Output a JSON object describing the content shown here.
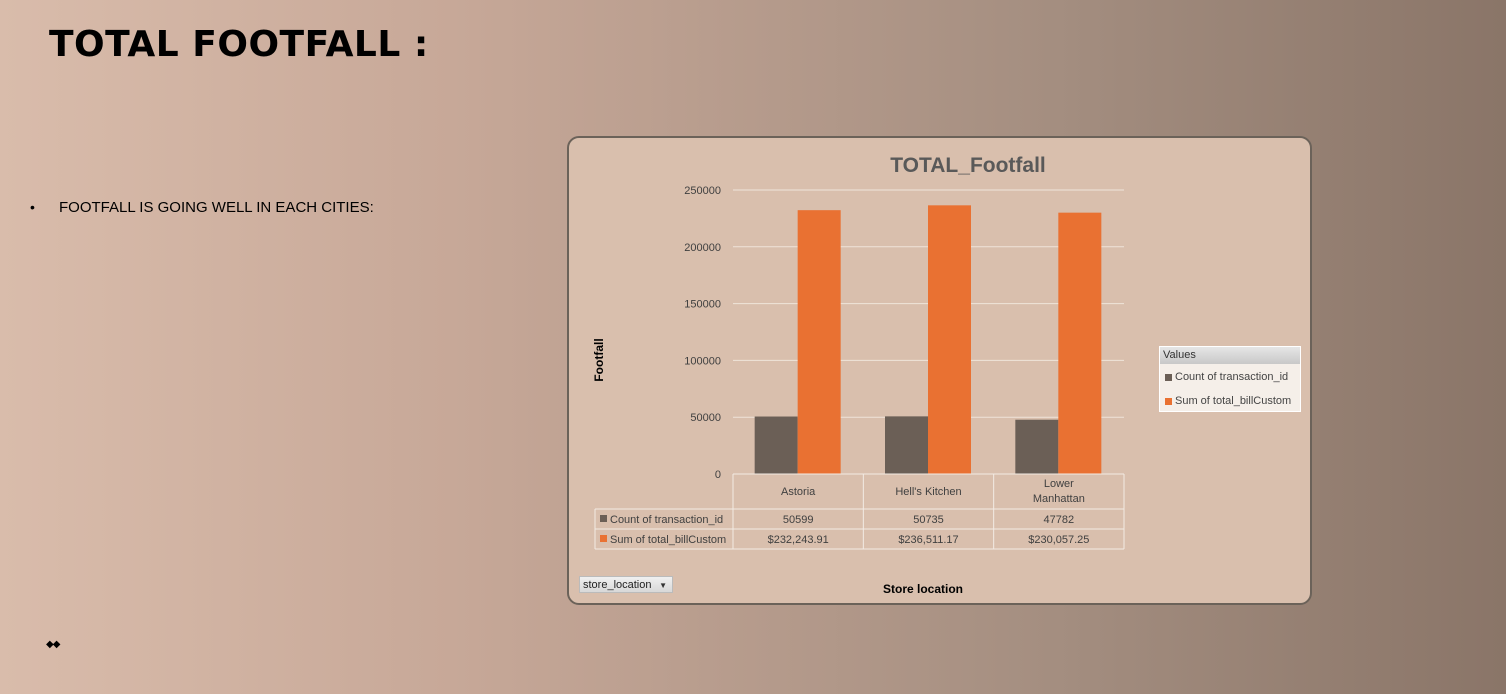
{
  "slide": {
    "title": "TOTAL FOOTFALL :",
    "bullet_text": "FOOTFALL IS GOING WELL IN EACH CITIES:",
    "bullet_glyph": "•",
    "footer_diamonds": "◆◆"
  },
  "chart_data": {
    "type": "bar",
    "title": "TOTAL_Footfall",
    "xlabel": "Store location",
    "ylabel": "Footfall",
    "ylim": [
      0,
      250000
    ],
    "yticks": [
      0,
      50000,
      100000,
      150000,
      200000,
      250000
    ],
    "grid": true,
    "legend_title": "Values",
    "legend_position": "right",
    "categories": [
      "Astoria",
      "Hell's Kitchen",
      "Lower Manhattan"
    ],
    "series": [
      {
        "name": "Count of transaction_id",
        "color": "#6b5f56",
        "values": [
          50599,
          50735,
          47782
        ],
        "table_labels": [
          "50599",
          "50735",
          "47782"
        ]
      },
      {
        "name": "Sum of total_billCustom",
        "color": "#e97132",
        "values": [
          232243.91,
          236511.17,
          230057.25
        ],
        "table_labels": [
          "$232,243.91",
          "$236,511.17",
          "$230,057.25"
        ]
      }
    ],
    "field_button": "store_location"
  }
}
